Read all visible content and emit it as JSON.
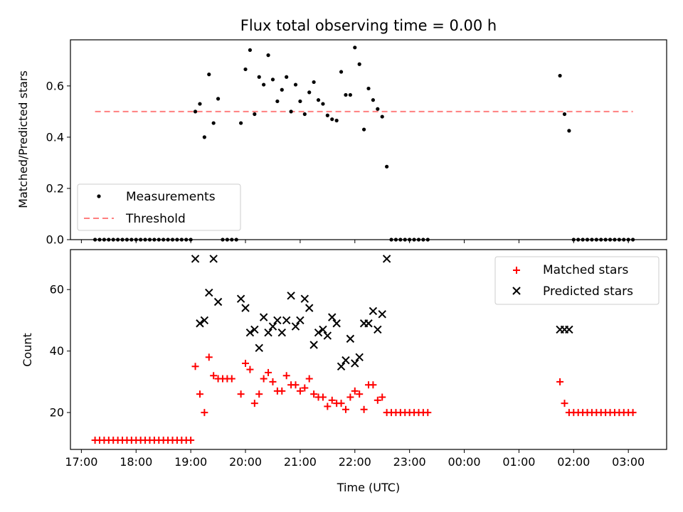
{
  "chart_data": [
    {
      "type": "scatter",
      "title": "Flux total observing time = 0.00 h",
      "ylabel": "Matched/Predicted stars",
      "xlabel": "",
      "ylim": [
        0,
        0.78
      ],
      "yticks": [
        0.0,
        0.2,
        0.4,
        0.6
      ],
      "ytick_labels": [
        "0.0",
        "0.2",
        "0.4",
        "0.6"
      ],
      "legend": {
        "placement": "lower-left",
        "entries": [
          "Measurements",
          "Threshold"
        ]
      },
      "threshold": {
        "name": "Threshold",
        "value": 0.5,
        "x_start": "17:15",
        "x_end": "03:05",
        "color": "#ff7f7f"
      },
      "series": [
        {
          "name": "Measurements",
          "marker": "dot",
          "color": "#000000",
          "points": [
            [
              "17:15",
              0
            ],
            [
              "17:20",
              0
            ],
            [
              "17:25",
              0
            ],
            [
              "17:30",
              0
            ],
            [
              "17:35",
              0
            ],
            [
              "17:40",
              0
            ],
            [
              "17:45",
              0
            ],
            [
              "17:50",
              0
            ],
            [
              "17:55",
              0
            ],
            [
              "18:00",
              0
            ],
            [
              "18:05",
              0
            ],
            [
              "18:10",
              0
            ],
            [
              "18:15",
              0
            ],
            [
              "18:20",
              0
            ],
            [
              "18:25",
              0
            ],
            [
              "18:30",
              0
            ],
            [
              "18:35",
              0
            ],
            [
              "18:40",
              0
            ],
            [
              "18:45",
              0
            ],
            [
              "18:50",
              0
            ],
            [
              "18:55",
              0
            ],
            [
              "19:00",
              0
            ],
            [
              "19:05",
              0.5
            ],
            [
              "19:10",
              0.53
            ],
            [
              "19:15",
              0.4
            ],
            [
              "19:20",
              0.645
            ],
            [
              "19:25",
              0.455
            ],
            [
              "19:30",
              0.55
            ],
            [
              "19:35",
              0
            ],
            [
              "19:40",
              0
            ],
            [
              "19:45",
              0
            ],
            [
              "19:50",
              0
            ],
            [
              "19:55",
              0.455
            ],
            [
              "20:00",
              0.665
            ],
            [
              "20:05",
              0.74
            ],
            [
              "20:10",
              0.49
            ],
            [
              "20:15",
              0.635
            ],
            [
              "20:20",
              0.605
            ],
            [
              "20:25",
              0.72
            ],
            [
              "20:30",
              0.625
            ],
            [
              "20:35",
              0.54
            ],
            [
              "20:40",
              0.585
            ],
            [
              "20:45",
              0.635
            ],
            [
              "20:50",
              0.5
            ],
            [
              "20:55",
              0.605
            ],
            [
              "21:00",
              0.54
            ],
            [
              "21:05",
              0.49
            ],
            [
              "21:10",
              0.575
            ],
            [
              "21:15",
              0.615
            ],
            [
              "21:20",
              0.545
            ],
            [
              "21:25",
              0.53
            ],
            [
              "21:30",
              0.485
            ],
            [
              "21:35",
              0.47
            ],
            [
              "21:40",
              0.465
            ],
            [
              "21:45",
              0.655
            ],
            [
              "21:50",
              0.565
            ],
            [
              "21:55",
              0.565
            ],
            [
              "22:00",
              0.75
            ],
            [
              "22:05",
              0.685
            ],
            [
              "22:10",
              0.43
            ],
            [
              "22:15",
              0.59
            ],
            [
              "22:20",
              0.545
            ],
            [
              "22:25",
              0.51
            ],
            [
              "22:30",
              0.48
            ],
            [
              "22:35",
              0.285
            ],
            [
              "22:40",
              0
            ],
            [
              "22:45",
              0
            ],
            [
              "22:50",
              0
            ],
            [
              "22:55",
              0
            ],
            [
              "23:00",
              0
            ],
            [
              "23:05",
              0
            ],
            [
              "23:10",
              0
            ],
            [
              "23:15",
              0
            ],
            [
              "23:20",
              0
            ],
            [
              "01:45",
              0.64
            ],
            [
              "01:50",
              0.49
            ],
            [
              "01:55",
              0.425
            ],
            [
              "02:00",
              0
            ],
            [
              "02:05",
              0
            ],
            [
              "02:10",
              0
            ],
            [
              "02:15",
              0
            ],
            [
              "02:20",
              0
            ],
            [
              "02:25",
              0
            ],
            [
              "02:30",
              0
            ],
            [
              "02:35",
              0
            ],
            [
              "02:40",
              0
            ],
            [
              "02:45",
              0
            ],
            [
              "02:50",
              0
            ],
            [
              "02:55",
              0
            ],
            [
              "03:00",
              0
            ],
            [
              "03:05",
              0
            ]
          ]
        }
      ]
    },
    {
      "type": "scatter",
      "title": "",
      "ylabel": "Count",
      "xlabel": "Time (UTC)",
      "ylim": [
        8,
        73
      ],
      "yticks": [
        20,
        40,
        60
      ],
      "ytick_labels": [
        "20",
        "40",
        "60"
      ],
      "xticks": [
        "17:00",
        "18:00",
        "19:00",
        "20:00",
        "21:00",
        "22:00",
        "23:00",
        "00:00",
        "01:00",
        "02:00",
        "03:00"
      ],
      "xtick_labels": [
        "17:00",
        "18:00",
        "19:00",
        "20:00",
        "21:00",
        "22:00",
        "23:00",
        "00:00",
        "01:00",
        "02:00",
        "03:00"
      ],
      "legend": {
        "placement": "upper-right",
        "entries": [
          "Matched stars",
          "Predicted stars"
        ]
      },
      "series": [
        {
          "name": "Matched stars",
          "marker": "plus",
          "color": "#ff0000",
          "points": [
            [
              "17:15",
              11
            ],
            [
              "17:20",
              11
            ],
            [
              "17:25",
              11
            ],
            [
              "17:30",
              11
            ],
            [
              "17:35",
              11
            ],
            [
              "17:40",
              11
            ],
            [
              "17:45",
              11
            ],
            [
              "17:50",
              11
            ],
            [
              "17:55",
              11
            ],
            [
              "18:00",
              11
            ],
            [
              "18:05",
              11
            ],
            [
              "18:10",
              11
            ],
            [
              "18:15",
              11
            ],
            [
              "18:20",
              11
            ],
            [
              "18:25",
              11
            ],
            [
              "18:30",
              11
            ],
            [
              "18:35",
              11
            ],
            [
              "18:40",
              11
            ],
            [
              "18:45",
              11
            ],
            [
              "18:50",
              11
            ],
            [
              "18:55",
              11
            ],
            [
              "19:00",
              11
            ],
            [
              "19:05",
              35
            ],
            [
              "19:10",
              26
            ],
            [
              "19:15",
              20
            ],
            [
              "19:20",
              38
            ],
            [
              "19:25",
              32
            ],
            [
              "19:30",
              31
            ],
            [
              "19:35",
              31
            ],
            [
              "19:40",
              31
            ],
            [
              "19:45",
              31
            ],
            [
              "19:55",
              26
            ],
            [
              "20:00",
              36
            ],
            [
              "20:05",
              34
            ],
            [
              "20:10",
              23
            ],
            [
              "20:15",
              26
            ],
            [
              "20:20",
              31
            ],
            [
              "20:25",
              33
            ],
            [
              "20:30",
              30
            ],
            [
              "20:35",
              27
            ],
            [
              "20:40",
              27
            ],
            [
              "20:45",
              32
            ],
            [
              "20:50",
              29
            ],
            [
              "20:55",
              29
            ],
            [
              "21:00",
              27
            ],
            [
              "21:05",
              28
            ],
            [
              "21:10",
              31
            ],
            [
              "21:15",
              26
            ],
            [
              "21:20",
              25
            ],
            [
              "21:25",
              25
            ],
            [
              "21:30",
              22
            ],
            [
              "21:35",
              24
            ],
            [
              "21:40",
              23
            ],
            [
              "21:45",
              23
            ],
            [
              "21:50",
              21
            ],
            [
              "21:55",
              25
            ],
            [
              "22:00",
              27
            ],
            [
              "22:05",
              26
            ],
            [
              "22:10",
              21
            ],
            [
              "22:15",
              29
            ],
            [
              "22:20",
              29
            ],
            [
              "22:25",
              24
            ],
            [
              "22:30",
              25
            ],
            [
              "22:35",
              20
            ],
            [
              "22:40",
              20
            ],
            [
              "22:45",
              20
            ],
            [
              "22:50",
              20
            ],
            [
              "22:55",
              20
            ],
            [
              "23:00",
              20
            ],
            [
              "23:05",
              20
            ],
            [
              "23:10",
              20
            ],
            [
              "23:15",
              20
            ],
            [
              "23:20",
              20
            ],
            [
              "01:45",
              30
            ],
            [
              "01:50",
              23
            ],
            [
              "01:55",
              20
            ],
            [
              "02:00",
              20
            ],
            [
              "02:05",
              20
            ],
            [
              "02:10",
              20
            ],
            [
              "02:15",
              20
            ],
            [
              "02:20",
              20
            ],
            [
              "02:25",
              20
            ],
            [
              "02:30",
              20
            ],
            [
              "02:35",
              20
            ],
            [
              "02:40",
              20
            ],
            [
              "02:45",
              20
            ],
            [
              "02:50",
              20
            ],
            [
              "02:55",
              20
            ],
            [
              "03:00",
              20
            ],
            [
              "03:05",
              20
            ]
          ]
        },
        {
          "name": "Predicted stars",
          "marker": "x",
          "color": "#000000",
          "points": [
            [
              "19:05",
              70
            ],
            [
              "19:10",
              49
            ],
            [
              "19:15",
              50
            ],
            [
              "19:20",
              59
            ],
            [
              "19:25",
              70
            ],
            [
              "19:30",
              56
            ],
            [
              "19:55",
              57
            ],
            [
              "20:00",
              54
            ],
            [
              "20:05",
              46
            ],
            [
              "20:10",
              47
            ],
            [
              "20:15",
              41
            ],
            [
              "20:20",
              51
            ],
            [
              "20:25",
              46
            ],
            [
              "20:30",
              48
            ],
            [
              "20:35",
              50
            ],
            [
              "20:40",
              46
            ],
            [
              "20:45",
              50
            ],
            [
              "20:50",
              58
            ],
            [
              "20:55",
              48
            ],
            [
              "21:00",
              50
            ],
            [
              "21:05",
              57
            ],
            [
              "21:10",
              54
            ],
            [
              "21:15",
              42
            ],
            [
              "21:20",
              46
            ],
            [
              "21:25",
              47
            ],
            [
              "21:30",
              45
            ],
            [
              "21:35",
              51
            ],
            [
              "21:40",
              49
            ],
            [
              "21:45",
              35
            ],
            [
              "21:50",
              37
            ],
            [
              "21:55",
              44
            ],
            [
              "22:00",
              36
            ],
            [
              "22:05",
              38
            ],
            [
              "22:10",
              49
            ],
            [
              "22:15",
              49
            ],
            [
              "22:20",
              53
            ],
            [
              "22:25",
              47
            ],
            [
              "22:30",
              52
            ],
            [
              "22:35",
              70
            ],
            [
              "01:45",
              47
            ],
            [
              "01:50",
              47
            ],
            [
              "01:55",
              47
            ]
          ]
        }
      ]
    }
  ]
}
